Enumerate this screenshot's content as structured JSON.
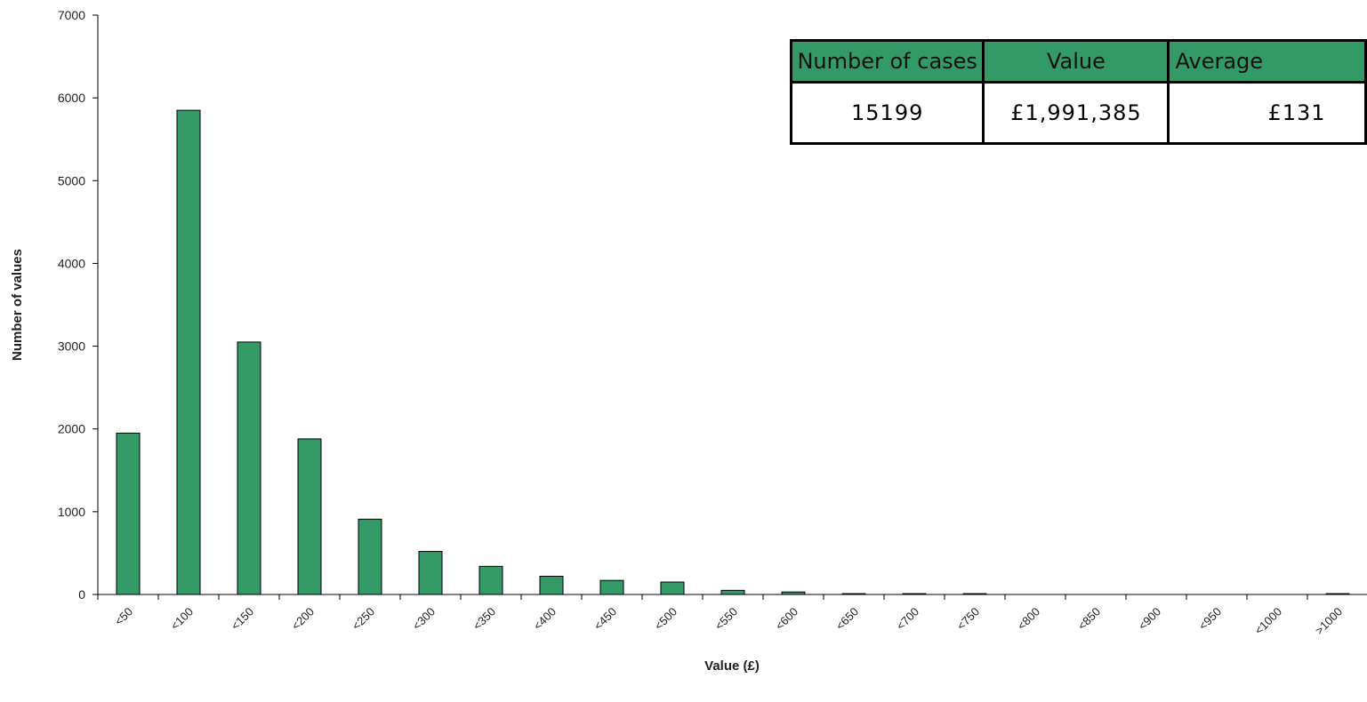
{
  "chart_data": {
    "type": "bar",
    "categories": [
      "<50",
      "<100",
      "<150",
      "<200",
      "<250",
      "<300",
      "<350",
      "<400",
      "<450",
      "<500",
      "<550",
      "<600",
      "<650",
      "<700",
      "<750",
      "<800",
      "<850",
      "<900",
      "<950",
      "<1000",
      ">1000"
    ],
    "values": [
      1950,
      5850,
      3050,
      1880,
      910,
      520,
      340,
      220,
      170,
      150,
      50,
      30,
      10,
      10,
      10,
      0,
      0,
      0,
      0,
      0,
      10
    ],
    "color": "#339966",
    "ylim": [
      0,
      7000
    ],
    "yticks": [
      0,
      1000,
      2000,
      3000,
      4000,
      5000,
      6000,
      7000
    ],
    "xlabel": "Value (£)",
    "ylabel": "Number of values"
  },
  "table": {
    "header": [
      "Number of cases",
      "Value",
      "Average"
    ],
    "rows": [
      [
        "15199",
        "£1,991,385",
        "£131"
      ]
    ]
  }
}
